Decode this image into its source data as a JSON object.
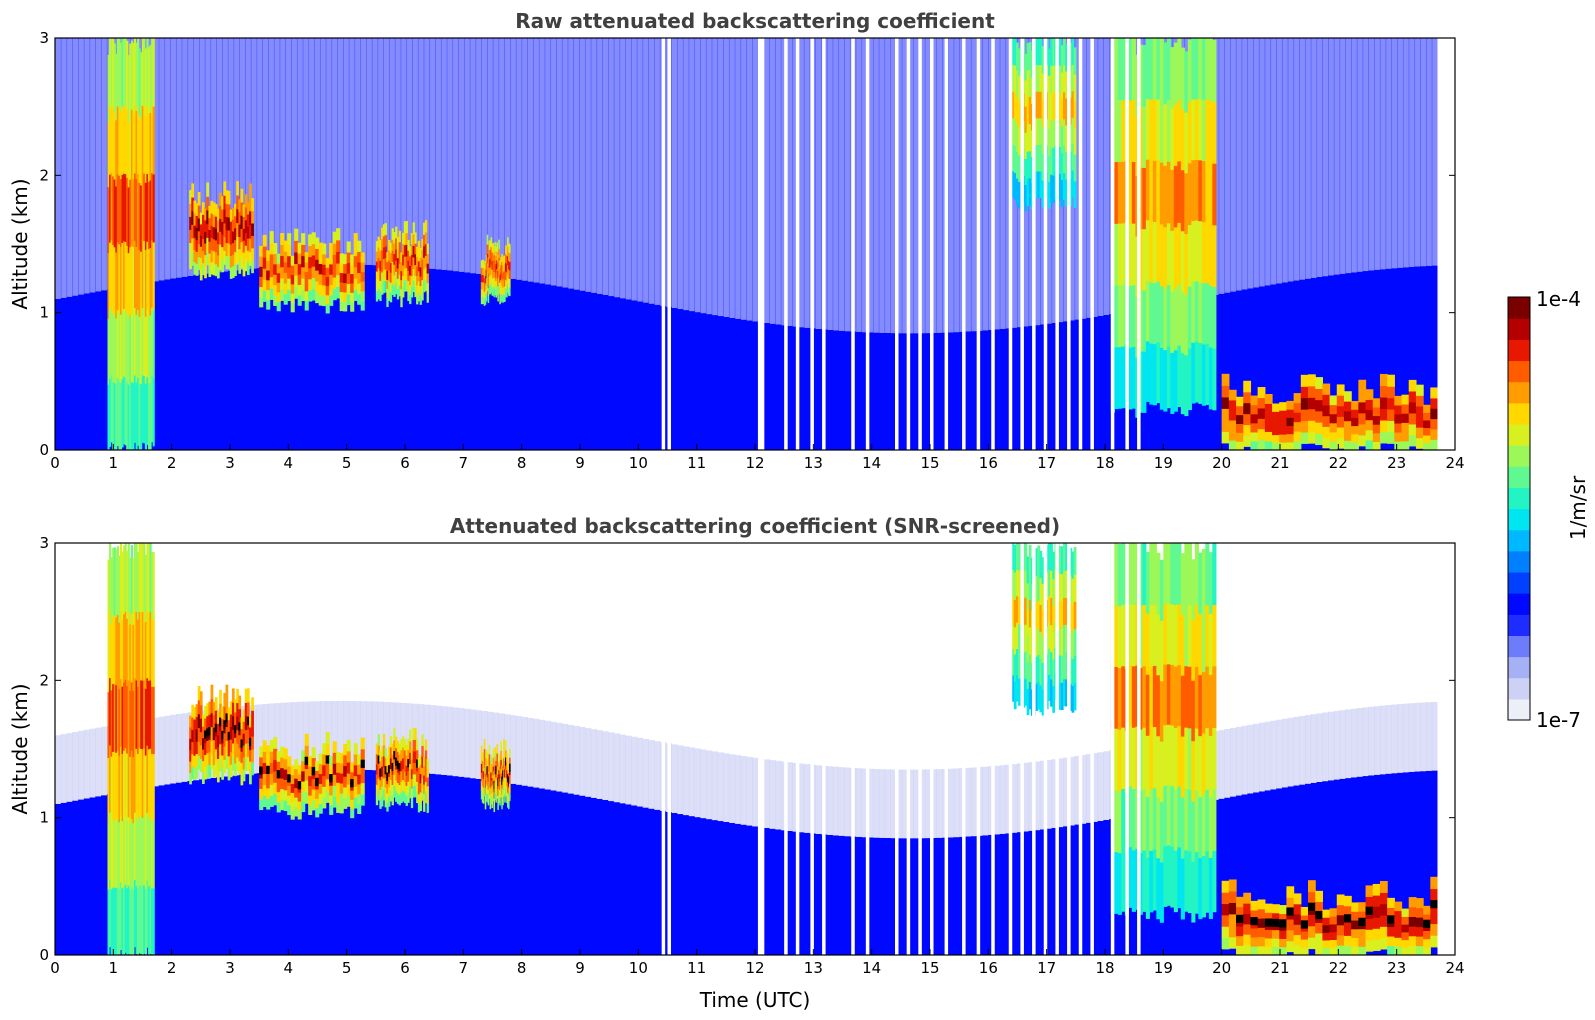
{
  "colors": {
    "jet": [
      "#eceef8",
      "#cdd2f4",
      "#a6b0f5",
      "#6c7cfb",
      "#1e2cff",
      "#0008ff",
      "#0040ff",
      "#0080ff",
      "#00b8ff",
      "#00e6f0",
      "#22f4c4",
      "#60f890",
      "#9cf858",
      "#d8f020",
      "#ffd800",
      "#ff9c00",
      "#ff5c00",
      "#e81800",
      "#b40000",
      "#7a0000"
    ],
    "strong": "#000000"
  },
  "chart_data": [
    {
      "type": "heatmap",
      "title": "Raw attenuated backscattering coefficient",
      "xlabel": "",
      "ylabel": "Altitude (km)",
      "xlim": [
        0,
        24
      ],
      "ylim": [
        0,
        3
      ],
      "xticks": [
        "0",
        "1",
        "2",
        "3",
        "4",
        "5",
        "6",
        "7",
        "8",
        "9",
        "10",
        "11",
        "12",
        "13",
        "14",
        "15",
        "16",
        "17",
        "18",
        "19",
        "20",
        "21",
        "22",
        "23",
        "24"
      ],
      "yticks": [
        "0",
        "1",
        "2",
        "3"
      ],
      "data_end_hour": 23.7,
      "gaps_utc": [
        10.4,
        10.5,
        12.05,
        12.1,
        12.5,
        12.7,
        12.95,
        13.15,
        13.65,
        13.9,
        14.4,
        14.6,
        14.8,
        15.0,
        15.25,
        15.55,
        15.8,
        16.05,
        16.35,
        16.55,
        16.75,
        16.95,
        17.15,
        17.35,
        17.55,
        17.75,
        18.1,
        18.35,
        18.55
      ],
      "features": [
        {
          "t": 0.9,
          "tend": 1.7,
          "base": 0,
          "top": 3.0,
          "level": 0.85
        },
        {
          "t": 2.3,
          "tend": 3.4,
          "base": 1.3,
          "top": 1.85,
          "level": 0.95
        },
        {
          "t": 3.5,
          "tend": 5.3,
          "base": 1.05,
          "top": 1.5,
          "level": 0.9
        },
        {
          "t": 5.5,
          "tend": 6.4,
          "base": 1.1,
          "top": 1.55,
          "level": 0.9
        },
        {
          "t": 7.3,
          "tend": 7.8,
          "base": 1.1,
          "top": 1.45,
          "level": 0.9
        },
        {
          "t": 16.4,
          "tend": 17.5,
          "base": 1.8,
          "top": 3.0,
          "level": 0.75
        },
        {
          "t": 18.1,
          "tend": 19.9,
          "base": 0.3,
          "top": 3.0,
          "level": 0.8
        },
        {
          "t": 20.0,
          "tend": 23.7,
          "base": 0.0,
          "top": 0.45,
          "level": 0.95
        }
      ]
    },
    {
      "type": "heatmap",
      "title": "Attenuated backscattering coefficient (SNR-screened)",
      "xlabel": "Time (UTC)",
      "ylabel": "Altitude (km)",
      "xlim": [
        0,
        24
      ],
      "ylim": [
        0,
        3
      ],
      "xticks": [
        "0",
        "1",
        "2",
        "3",
        "4",
        "5",
        "6",
        "7",
        "8",
        "9",
        "10",
        "11",
        "12",
        "13",
        "14",
        "15",
        "16",
        "17",
        "18",
        "19",
        "20",
        "21",
        "22",
        "23",
        "24"
      ],
      "yticks": [
        "0",
        "1",
        "2",
        "3"
      ],
      "data_end_hour": 23.7,
      "gaps_utc": [
        10.4,
        10.5,
        12.05,
        12.1,
        12.5,
        12.7,
        12.95,
        13.15,
        13.65,
        13.9,
        14.4,
        14.6,
        14.8,
        15.0,
        15.25,
        15.55,
        15.8,
        16.05,
        16.35,
        16.55,
        16.75,
        16.95,
        17.15,
        17.35,
        17.55,
        17.75,
        18.1,
        18.35,
        18.55
      ],
      "features": [
        {
          "t": 0.9,
          "tend": 1.7,
          "base": 0,
          "top": 3.0,
          "level": 0.85
        },
        {
          "t": 2.3,
          "tend": 3.4,
          "base": 1.3,
          "top": 1.85,
          "level": 0.95
        },
        {
          "t": 3.5,
          "tend": 5.3,
          "base": 1.05,
          "top": 1.5,
          "level": 0.9
        },
        {
          "t": 5.5,
          "tend": 6.4,
          "base": 1.1,
          "top": 1.55,
          "level": 0.9
        },
        {
          "t": 7.3,
          "tend": 7.8,
          "base": 1.1,
          "top": 1.45,
          "level": 0.9
        },
        {
          "t": 16.4,
          "tend": 17.5,
          "base": 1.8,
          "top": 3.0,
          "level": 0.75
        },
        {
          "t": 18.1,
          "tend": 19.9,
          "base": 0.3,
          "top": 3.0,
          "level": 0.8
        },
        {
          "t": 20.0,
          "tend": 23.7,
          "base": 0.0,
          "top": 0.45,
          "level": 0.95
        }
      ]
    }
  ],
  "colorbar": {
    "max_label": "1e-4",
    "min_label": "1e-7",
    "unit": "1/m/sr",
    "range": [
      1e-07,
      0.0001
    ],
    "scale": "log"
  }
}
